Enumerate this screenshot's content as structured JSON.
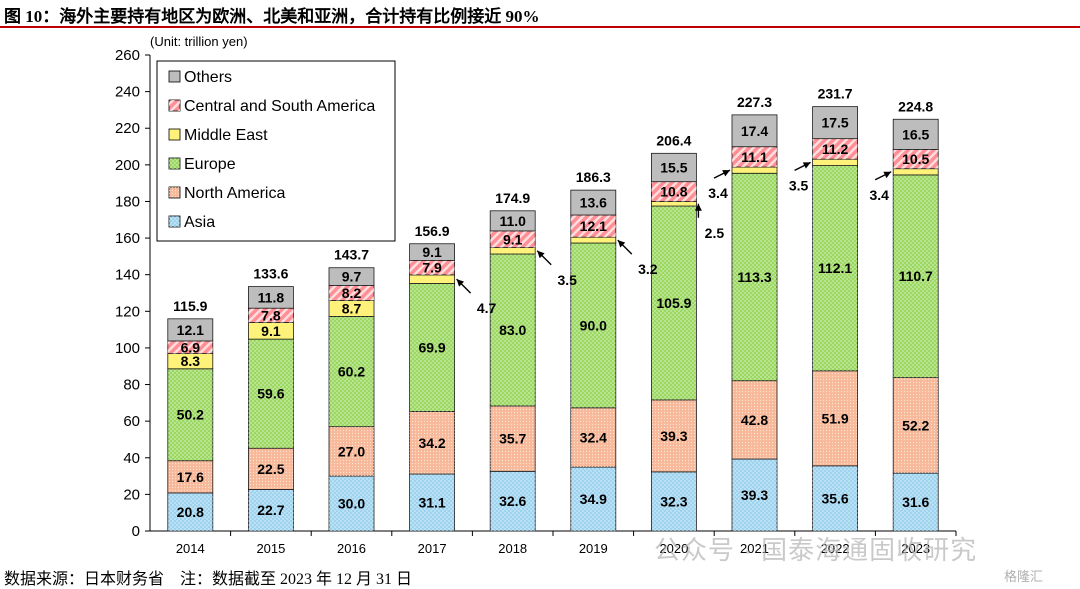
{
  "header": {
    "title": "图 10：海外主要持有地区为欧洲、北美和亚洲，合计持有比例接近 90%"
  },
  "footer": {
    "source": "数据来源：日本财务省　注：数据截至 2023 年 12 月 31 日"
  },
  "watermark": {
    "text": "公众号 · 国泰海通固收研究",
    "badge": "格隆汇"
  },
  "chart_data": {
    "type": "bar",
    "stacked": true,
    "unit_label": "(Unit: trillion yen)",
    "categories": [
      "2014",
      "2015",
      "2016",
      "2017",
      "2018",
      "2019",
      "2020",
      "2021",
      "2022",
      "2023"
    ],
    "series": [
      {
        "name": "Asia",
        "color": "#9ed3f0",
        "pattern": "dots",
        "values": [
          20.8,
          22.7,
          30.0,
          31.1,
          32.6,
          34.9,
          32.3,
          39.3,
          35.6,
          31.6
        ]
      },
      {
        "name": "North America",
        "color": "#f7b99a",
        "pattern": "fine",
        "values": [
          17.6,
          22.5,
          27.0,
          34.2,
          35.7,
          32.4,
          39.3,
          42.8,
          51.9,
          52.2
        ]
      },
      {
        "name": "Europe",
        "color": "#9ad860",
        "pattern": "dots",
        "values": [
          50.2,
          59.6,
          60.2,
          69.9,
          83.0,
          90.0,
          105.9,
          113.3,
          112.1,
          110.7
        ]
      },
      {
        "name": "Middle East",
        "color": "#fff27a",
        "pattern": "none",
        "values": [
          8.3,
          9.1,
          8.7,
          4.7,
          3.5,
          3.2,
          2.5,
          3.4,
          3.5,
          3.4
        ]
      },
      {
        "name": "Central and South America",
        "color": "#ff8f95",
        "pattern": "stripes",
        "values": [
          6.9,
          7.8,
          8.2,
          7.9,
          9.1,
          12.1,
          10.8,
          11.1,
          11.2,
          10.5
        ]
      },
      {
        "name": "Others",
        "color": "#bdbdbd",
        "pattern": "none",
        "values": [
          12.1,
          11.8,
          9.7,
          9.1,
          11.0,
          13.6,
          15.5,
          17.4,
          17.5,
          16.5
        ]
      }
    ],
    "totals": [
      115.9,
      133.6,
      143.7,
      156.9,
      174.9,
      186.3,
      206.4,
      227.3,
      231.7,
      224.8
    ],
    "ylim": [
      0,
      260
    ],
    "yticks": [
      0,
      20,
      40,
      60,
      80,
      100,
      120,
      140,
      160,
      180,
      200,
      220,
      240,
      260
    ],
    "legend": {
      "placement": "top-left",
      "order": [
        "Others",
        "Central and South America",
        "Middle East",
        "Europe",
        "North America",
        "Asia"
      ]
    },
    "grid": false
  }
}
